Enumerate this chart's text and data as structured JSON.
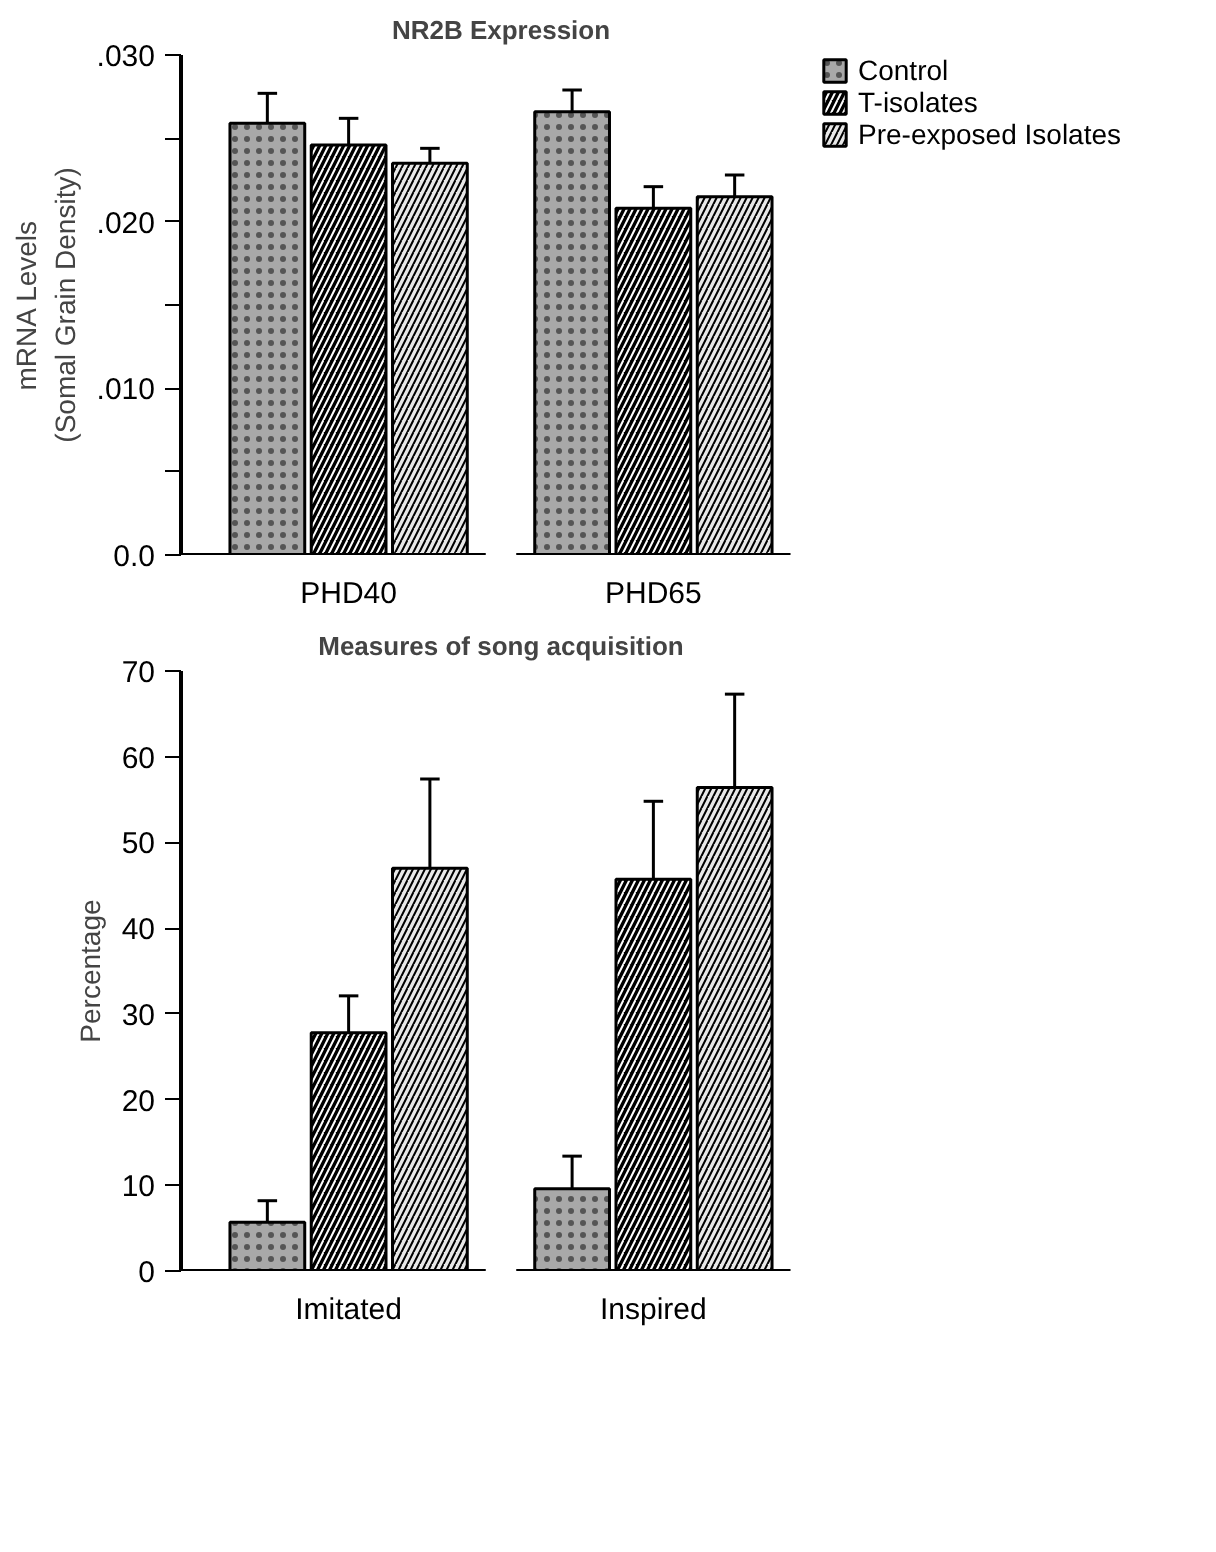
{
  "chart_data": [
    {
      "type": "bar",
      "title": "NR2B Expression",
      "ylabel": "mRNA Levels\n(Somal Grain Density)",
      "categories": [
        "PHD40",
        "PHD65"
      ],
      "series": [
        {
          "name": "Control",
          "color": "#a8a8a8",
          "values": [
            0.0259,
            0.0266
          ],
          "errors": [
            [
              0.0259,
              0.0277
            ],
            [
              0.0266,
              0.0279
            ]
          ]
        },
        {
          "name": "T-isolates",
          "color": "#000000",
          "values": [
            0.0246,
            0.0208
          ],
          "errors": [
            [
              0.0246,
              0.0262
            ],
            [
              0.0208,
              0.0221
            ]
          ]
        },
        {
          "name": "Pre-exposed Isolates",
          "color": "#e8e8e8",
          "values": [
            0.0235,
            0.0215
          ],
          "errors": [
            [
              0.0235,
              0.0244
            ],
            [
              0.0215,
              0.0228
            ]
          ]
        }
      ],
      "ylim": [
        0,
        0.03
      ],
      "yticks": [
        {
          "value": 0,
          "label": "0.0"
        },
        {
          "value": 0.005,
          "label": null
        },
        {
          "value": 0.01,
          "label": ".010"
        },
        {
          "value": 0.015,
          "label": null
        },
        {
          "value": 0.02,
          "label": ".020"
        },
        {
          "value": 0.025,
          "label": null
        },
        {
          "value": 0.03,
          "label": ".030"
        }
      ],
      "grid": false,
      "legend": "top right"
    },
    {
      "type": "bar",
      "title": "Measures of song acquisition",
      "ylabel": "Percentage",
      "categories": [
        "Imitated",
        "Inspired"
      ],
      "series": [
        {
          "color": "#a8a8a8",
          "values": [
            5.7,
            9.6
          ],
          "errors": [
            [
              5.7,
              8.2
            ],
            [
              9.6,
              13.4
            ]
          ]
        },
        {
          "color": "#000000",
          "values": [
            27.8,
            45.7
          ],
          "errors": [
            [
              27.8,
              32.1
            ],
            [
              45.7,
              54.8
            ]
          ]
        },
        {
          "color": "#e8e8e8",
          "values": [
            47.0,
            56.4
          ],
          "errors": [
            [
              47.0,
              57.4
            ],
            [
              56.4,
              67.3
            ]
          ]
        }
      ],
      "ylim": [
        0,
        70
      ],
      "yticks": [
        0,
        10,
        20,
        30,
        40,
        50,
        60,
        70
      ],
      "grid": false
    }
  ]
}
